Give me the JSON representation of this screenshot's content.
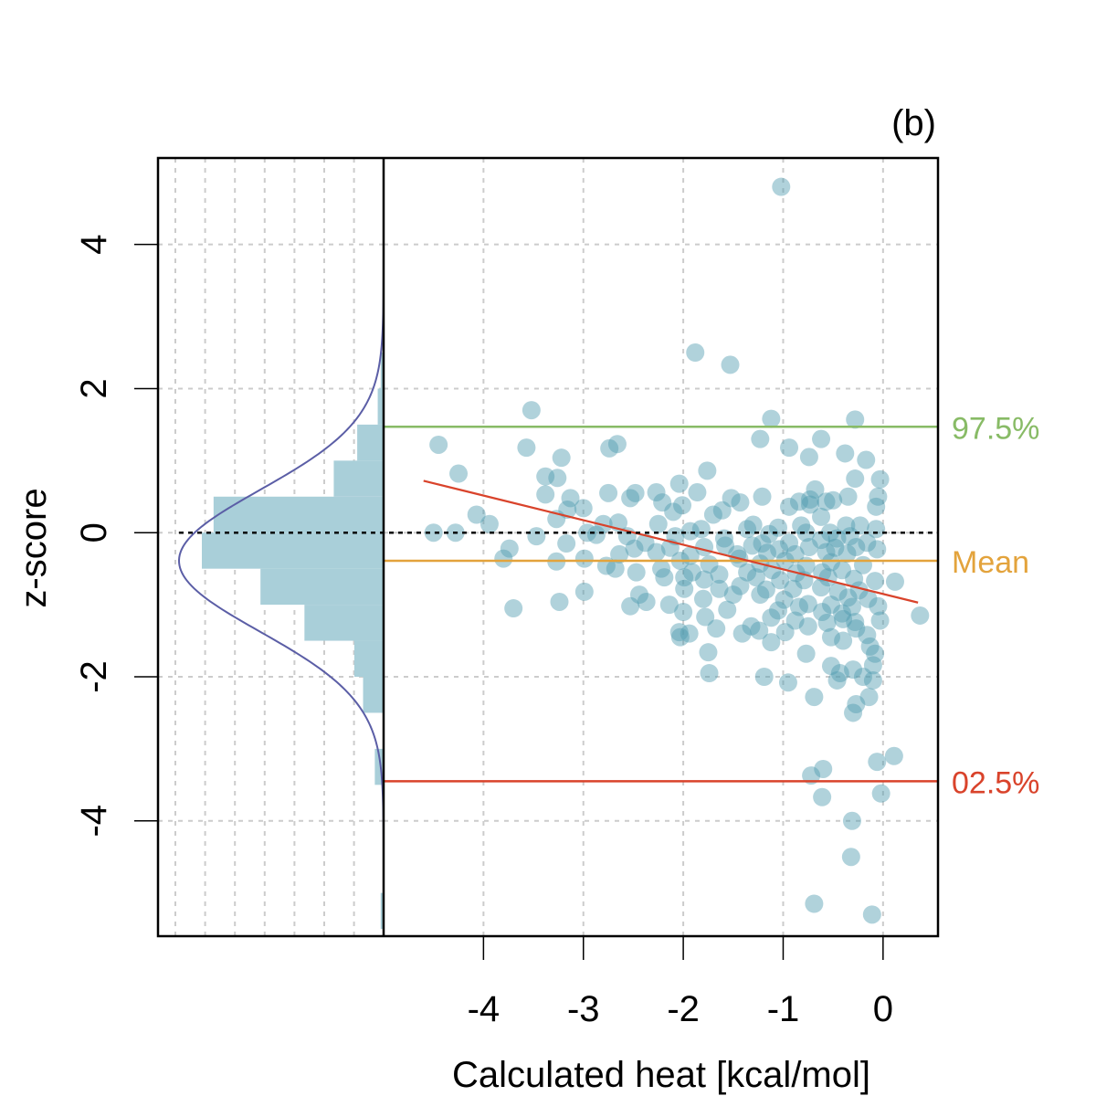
{
  "chart_data": {
    "type": "scatter",
    "panel_label": "(b)",
    "xlabel": "Calculated heat [kcal/mol]",
    "ylabel": "z-score",
    "xlim": [
      -5.0,
      0.55
    ],
    "ylim": [
      -5.6,
      5.2
    ],
    "x_ticks": [
      -4,
      -3,
      -2,
      -1,
      0
    ],
    "x_tick_labels": [
      "-4",
      "-3",
      "-2",
      "-1",
      "0"
    ],
    "y_ticks": [
      -4,
      -2,
      0,
      2,
      4
    ],
    "y_tick_labels": [
      "-4",
      "-2",
      "0",
      "2",
      "4"
    ],
    "grid": true,
    "colors": {
      "points": "#4f9bb0",
      "histogram": "#a9cfd9",
      "density_curve": "#5b5ea6",
      "regression": "#d9432b",
      "upper": "#88bb66",
      "mean": "#e3a33c",
      "lower": "#d9432b",
      "zero": "#000000"
    },
    "reference_lines": [
      {
        "name": "upper",
        "label": "97.5%",
        "y": 1.47
      },
      {
        "name": "mean",
        "label": "Mean",
        "y": -0.39
      },
      {
        "name": "lower",
        "label": "02.5%",
        "y": -3.45
      }
    ],
    "zero_line": 0,
    "regression_line": {
      "x": [
        -4.6,
        0.35
      ],
      "y": [
        0.72,
        -0.97
      ]
    },
    "side_histogram": {
      "bins": [
        {
          "y0": -5.5,
          "y1": -5.0,
          "count": 1
        },
        {
          "y0": -5.0,
          "y1": -4.5,
          "count": 0
        },
        {
          "y0": -4.5,
          "y1": -4.0,
          "count": 0
        },
        {
          "y0": -4.0,
          "y1": -3.5,
          "count": 0
        },
        {
          "y0": -3.5,
          "y1": -3.0,
          "count": 3
        },
        {
          "y0": -3.0,
          "y1": -2.5,
          "count": 0
        },
        {
          "y0": -2.5,
          "y1": -2.0,
          "count": 7
        },
        {
          "y0": -2.0,
          "y1": -1.5,
          "count": 10
        },
        {
          "y0": -1.5,
          "y1": -1.0,
          "count": 27
        },
        {
          "y0": -1.0,
          "y1": -0.5,
          "count": 42
        },
        {
          "y0": -0.5,
          "y1": 0.0,
          "count": 62
        },
        {
          "y0": 0.0,
          "y1": 0.5,
          "count": 58
        },
        {
          "y0": 0.5,
          "y1": 1.0,
          "count": 17
        },
        {
          "y0": 1.0,
          "y1": 1.5,
          "count": 9
        },
        {
          "y0": 1.5,
          "y1": 2.0,
          "count": 2
        },
        {
          "y0": 2.0,
          "y1": 2.5,
          "count": 1
        }
      ],
      "max_count": 62,
      "normal_curve": {
        "mean": -0.39,
        "sd": 0.98
      }
    },
    "points": [
      [
        -1.02,
        4.8
      ],
      [
        -1.88,
        2.5
      ],
      [
        -1.53,
        2.33
      ],
      [
        -3.52,
        1.7
      ],
      [
        -1.12,
        1.58
      ],
      [
        -0.28,
        1.57
      ],
      [
        -0.62,
        1.3
      ],
      [
        -1.23,
        1.3
      ],
      [
        -4.45,
        1.22
      ],
      [
        -3.57,
        1.18
      ],
      [
        -2.66,
        1.23
      ],
      [
        -2.74,
        1.17
      ],
      [
        -0.94,
        1.18
      ],
      [
        -0.38,
        1.1
      ],
      [
        -0.74,
        1.05
      ],
      [
        -3.22,
        1.04
      ],
      [
        -0.17,
        1.01
      ],
      [
        -1.76,
        0.86
      ],
      [
        -4.25,
        0.82
      ],
      [
        -3.38,
        0.78
      ],
      [
        -3.26,
        0.76
      ],
      [
        -0.28,
        0.75
      ],
      [
        -0.03,
        0.74
      ],
      [
        -2.04,
        0.68
      ],
      [
        -0.68,
        0.6
      ],
      [
        -2.27,
        0.56
      ],
      [
        -1.86,
        0.56
      ],
      [
        -2.75,
        0.55
      ],
      [
        -3.38,
        0.53
      ],
      [
        -0.35,
        0.5
      ],
      [
        -0.05,
        0.5
      ],
      [
        -1.52,
        0.48
      ],
      [
        -2.53,
        0.48
      ],
      [
        -1.21,
        0.5
      ],
      [
        -0.73,
        0.46
      ],
      [
        -2.48,
        0.55
      ],
      [
        -3.13,
        0.48
      ],
      [
        -0.5,
        0.45
      ],
      [
        -0.57,
        0.43
      ],
      [
        -2.21,
        0.42
      ],
      [
        -1.43,
        0.42
      ],
      [
        -0.84,
        0.43
      ],
      [
        -0.73,
        0.39
      ],
      [
        -2.01,
        0.38
      ],
      [
        -0.94,
        0.36
      ],
      [
        -0.07,
        0.36
      ],
      [
        -3.0,
        0.34
      ],
      [
        -3.16,
        0.32
      ],
      [
        -1.61,
        0.31
      ],
      [
        -2.1,
        0.29
      ],
      [
        -1.7,
        0.25
      ],
      [
        -4.07,
        0.25
      ],
      [
        -0.62,
        0.22
      ],
      [
        -3.27,
        0.19
      ],
      [
        -2.65,
        0.14
      ],
      [
        -2.8,
        0.12
      ],
      [
        -2.25,
        0.12
      ],
      [
        -3.94,
        0.12
      ],
      [
        -1.3,
        0.11
      ],
      [
        -0.82,
        0.1
      ],
      [
        -0.37,
        0.1
      ],
      [
        -0.23,
        0.1
      ],
      [
        -1.05,
        0.07
      ],
      [
        -1.82,
        0.05
      ],
      [
        -1.36,
        0.05
      ],
      [
        -1.93,
        0.02
      ],
      [
        -4.5,
        0.0
      ],
      [
        -4.28,
        0.0
      ],
      [
        -2.96,
        0.0
      ],
      [
        -0.77,
        0.0
      ],
      [
        -0.53,
        0.0
      ],
      [
        -0.07,
        0.05
      ],
      [
        -3.47,
        -0.05
      ],
      [
        -2.87,
        -0.03
      ],
      [
        -2.56,
        -0.05
      ],
      [
        -2.08,
        -0.05
      ],
      [
        -1.59,
        -0.08
      ],
      [
        -1.14,
        -0.02
      ],
      [
        -0.62,
        -0.1
      ],
      [
        -0.33,
        -0.05
      ],
      [
        -0.46,
        -0.08
      ],
      [
        -2.38,
        -0.14
      ],
      [
        -1.21,
        -0.15
      ],
      [
        -0.94,
        -0.14
      ],
      [
        -0.16,
        -0.14
      ],
      [
        -1.58,
        -0.18
      ],
      [
        -0.74,
        -0.2
      ],
      [
        -3.74,
        -0.22
      ],
      [
        -3.17,
        -0.15
      ],
      [
        -2.49,
        -0.22
      ],
      [
        -2.13,
        -0.21
      ],
      [
        -1.79,
        -0.2
      ],
      [
        -1.31,
        -0.18
      ],
      [
        -1.04,
        -0.23
      ],
      [
        -0.48,
        -0.21
      ],
      [
        -0.27,
        -0.2
      ],
      [
        -0.06,
        -0.23
      ],
      [
        -2.64,
        -0.3
      ],
      [
        -2.27,
        -0.27
      ],
      [
        -1.93,
        -0.32
      ],
      [
        -1.46,
        -0.3
      ],
      [
        -1.16,
        -0.28
      ],
      [
        -0.88,
        -0.3
      ],
      [
        -0.57,
        -0.27
      ],
      [
        -0.36,
        -0.29
      ],
      [
        -3.8,
        -0.36
      ],
      [
        -3.27,
        -0.4
      ],
      [
        -2.99,
        -0.36
      ],
      [
        -2.77,
        -0.46
      ],
      [
        -2.03,
        -0.39
      ],
      [
        -1.74,
        -0.44
      ],
      [
        -1.44,
        -0.36
      ],
      [
        -1.23,
        -0.43
      ],
      [
        -0.98,
        -0.39
      ],
      [
        -0.77,
        -0.46
      ],
      [
        -0.52,
        -0.41
      ],
      [
        -0.2,
        -0.45
      ],
      [
        -2.47,
        -0.55
      ],
      [
        -2.22,
        -0.5
      ],
      [
        -1.91,
        -0.55
      ],
      [
        -1.64,
        -0.58
      ],
      [
        -1.36,
        -0.55
      ],
      [
        -1.11,
        -0.52
      ],
      [
        -0.87,
        -0.56
      ],
      [
        -0.61,
        -0.55
      ],
      [
        -0.41,
        -0.52
      ],
      [
        -2.68,
        -0.5
      ],
      [
        -2.19,
        -0.62
      ],
      [
        -1.99,
        -0.62
      ],
      [
        -1.79,
        -0.65
      ],
      [
        -1.27,
        -0.62
      ],
      [
        -1.03,
        -0.66
      ],
      [
        -0.79,
        -0.66
      ],
      [
        -0.55,
        -0.62
      ],
      [
        -0.29,
        -0.64
      ],
      [
        -0.08,
        -0.67
      ],
      [
        0.12,
        -0.68
      ],
      [
        -2.99,
        -0.82
      ],
      [
        -2.44,
        -0.86
      ],
      [
        -1.99,
        -0.78
      ],
      [
        -1.64,
        -0.78
      ],
      [
        -1.43,
        -0.74
      ],
      [
        -1.17,
        -0.79
      ],
      [
        -0.9,
        -0.78
      ],
      [
        -0.62,
        -0.76
      ],
      [
        -0.45,
        -0.82
      ],
      [
        -0.24,
        -0.8
      ],
      [
        -0.35,
        -0.9
      ],
      [
        -0.15,
        -0.92
      ],
      [
        -3.24,
        -0.96
      ],
      [
        -2.37,
        -0.96
      ],
      [
        -1.8,
        -0.92
      ],
      [
        -1.5,
        -0.86
      ],
      [
        -1.23,
        -0.86
      ],
      [
        -0.99,
        -0.93
      ],
      [
        -0.75,
        -0.99
      ],
      [
        -0.52,
        -1.0
      ],
      [
        -0.31,
        -1.03
      ],
      [
        -0.05,
        -1.02
      ],
      [
        -3.7,
        -1.05
      ],
      [
        -2.53,
        -1.02
      ],
      [
        -2.14,
        -1.0
      ],
      [
        -1.56,
        -1.07
      ],
      [
        -0.84,
        -1.03
      ],
      [
        -0.61,
        -1.1
      ],
      [
        -0.41,
        -1.12
      ],
      [
        -2.0,
        -1.1
      ],
      [
        -1.05,
        -1.08
      ],
      [
        -1.78,
        -1.17
      ],
      [
        -1.12,
        -1.18
      ],
      [
        -0.88,
        -1.22
      ],
      [
        -0.56,
        -1.25
      ],
      [
        -0.4,
        -1.2
      ],
      [
        -0.28,
        -1.24
      ],
      [
        0.37,
        -1.15
      ],
      [
        -1.67,
        -1.33
      ],
      [
        -1.32,
        -1.3
      ],
      [
        -0.75,
        -1.3
      ],
      [
        -0.27,
        -1.33
      ],
      [
        -0.03,
        -1.22
      ],
      [
        -2.04,
        -1.38
      ],
      [
        -1.94,
        -1.4
      ],
      [
        -1.41,
        -1.4
      ],
      [
        -1.24,
        -1.36
      ],
      [
        -0.98,
        -1.38
      ],
      [
        -0.52,
        -1.45
      ],
      [
        -0.4,
        -1.5
      ],
      [
        -0.16,
        -1.42
      ],
      [
        -2.03,
        -1.45
      ],
      [
        -0.13,
        -1.58
      ],
      [
        -1.12,
        -1.52
      ],
      [
        -1.75,
        -1.66
      ],
      [
        -0.77,
        -1.68
      ],
      [
        -0.08,
        -1.68
      ],
      [
        -0.52,
        -1.85
      ],
      [
        -0.1,
        -1.84
      ],
      [
        -0.3,
        -1.9
      ],
      [
        -0.43,
        -1.95
      ],
      [
        -1.74,
        -1.95
      ],
      [
        -1.19,
        -2.0
      ],
      [
        -0.2,
        -2.0
      ],
      [
        -0.1,
        -2.05
      ],
      [
        -0.46,
        -2.05
      ],
      [
        -0.95,
        -2.08
      ],
      [
        -0.14,
        -2.28
      ],
      [
        -0.27,
        -2.38
      ],
      [
        -0.69,
        -2.28
      ],
      [
        -0.3,
        -2.5
      ],
      [
        0.11,
        -3.1
      ],
      [
        -0.06,
        -3.18
      ],
      [
        -0.6,
        -3.28
      ],
      [
        -0.72,
        -3.37
      ],
      [
        -0.61,
        -3.67
      ],
      [
        -0.02,
        -3.62
      ],
      [
        -0.31,
        -4.0
      ],
      [
        -0.32,
        -4.5
      ],
      [
        -0.69,
        -5.15
      ],
      [
        -0.11,
        -5.3
      ]
    ]
  }
}
